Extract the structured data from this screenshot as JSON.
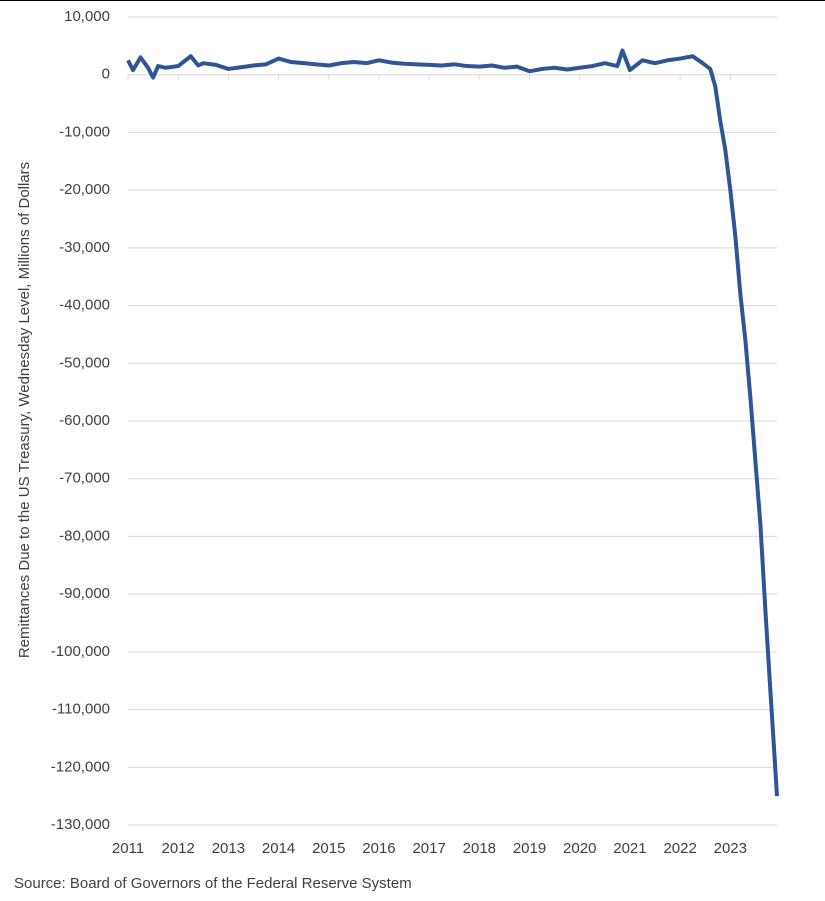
{
  "chart_data": {
    "type": "line",
    "y_label": "Remittances Due to the US Treasury, Wednesday Level, Millions of Dollars",
    "source": "Source: Board of Governors of the Federal Reserve System",
    "x": [
      2011,
      2011.1,
      2011.25,
      2011.4,
      2011.5,
      2011.6,
      2011.75,
      2012,
      2012.25,
      2012.4,
      2012.5,
      2012.75,
      2013,
      2013.25,
      2013.5,
      2013.75,
      2014,
      2014.25,
      2014.5,
      2014.75,
      2015,
      2015.25,
      2015.5,
      2015.75,
      2016,
      2016.25,
      2016.5,
      2016.75,
      2017,
      2017.25,
      2017.5,
      2017.75,
      2018,
      2018.25,
      2018.5,
      2018.75,
      2019,
      2019.25,
      2019.5,
      2019.75,
      2020,
      2020.25,
      2020.5,
      2020.75,
      2020.85,
      2021,
      2021.25,
      2021.5,
      2021.75,
      2022,
      2022.25,
      2022.45,
      2022.6,
      2022.7,
      2022.8,
      2022.9,
      2023,
      2023.1,
      2023.2,
      2023.3,
      2023.4,
      2023.5,
      2023.6,
      2023.7,
      2023.8,
      2023.88,
      2023.93
    ],
    "series": [
      {
        "name": "Remittances",
        "color": "#2f5597",
        "values": [
          2500,
          800,
          3000,
          1200,
          -500,
          1500,
          1200,
          1500,
          3200,
          1600,
          2000,
          1700,
          1000,
          1300,
          1600,
          1800,
          2800,
          2200,
          2000,
          1800,
          1600,
          2000,
          2200,
          2000,
          2500,
          2100,
          1900,
          1800,
          1700,
          1600,
          1800,
          1500,
          1400,
          1600,
          1200,
          1400,
          600,
          1000,
          1200,
          900,
          1200,
          1500,
          2000,
          1500,
          4200,
          800,
          2500,
          2000,
          2500,
          2800,
          3200,
          2000,
          1000,
          -2000,
          -8000,
          -13000,
          -20000,
          -28000,
          -38000,
          -46000,
          -56000,
          -67000,
          -78000,
          -93000,
          -107000,
          -118000,
          -125000
        ]
      }
    ],
    "xlim": [
      2011,
      2023.93
    ],
    "xticks": [
      2011,
      2012,
      2013,
      2014,
      2015,
      2016,
      2017,
      2018,
      2019,
      2020,
      2021,
      2022,
      2023
    ],
    "ylim": [
      -130000,
      10000
    ],
    "yticks": [
      {
        "value": -130000,
        "label": "-130,000"
      },
      {
        "value": -120000,
        "label": "-120,000"
      },
      {
        "value": -110000,
        "label": "-110,000"
      },
      {
        "value": -100000,
        "label": "-100,000"
      },
      {
        "value": -90000,
        "label": "-90,000"
      },
      {
        "value": -80000,
        "label": "-80,000"
      },
      {
        "value": -70000,
        "label": "-70,000"
      },
      {
        "value": -60000,
        "label": "-60,000"
      },
      {
        "value": -50000,
        "label": "-50,000"
      },
      {
        "value": -40000,
        "label": "-40,000"
      },
      {
        "value": -30000,
        "label": "-30,000"
      },
      {
        "value": -20000,
        "label": "-20,000"
      },
      {
        "value": -10000,
        "label": "-10,000"
      },
      0,
      {
        "value": 10000,
        "label": "10,000"
      }
    ],
    "grid": true
  }
}
